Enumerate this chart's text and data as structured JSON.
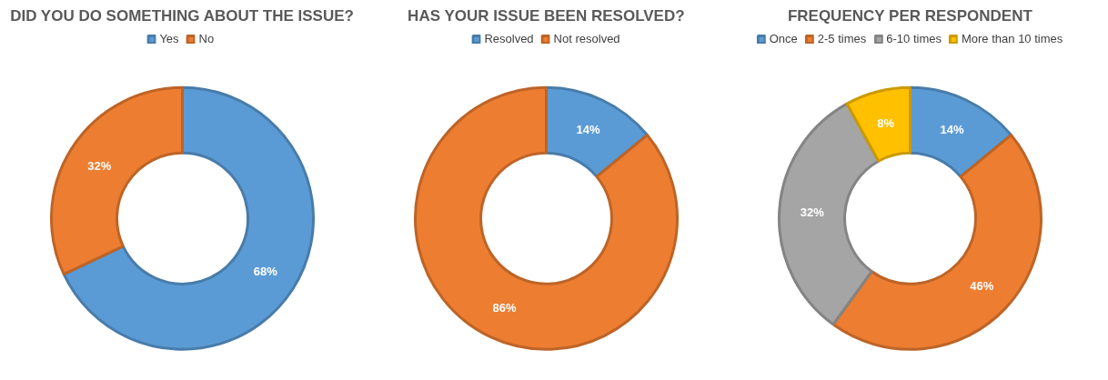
{
  "chart_data": [
    {
      "type": "donut",
      "title": "DID YOU DO SOMETHING ABOUT THE ISSUE?",
      "categories": [
        "Yes",
        "No"
      ],
      "values": [
        68,
        32
      ],
      "colors": [
        "#5b9bd5",
        "#ed7d31"
      ],
      "value_labels": [
        "68%",
        "32%"
      ],
      "legend": "top"
    },
    {
      "type": "donut",
      "title": "HAS YOUR ISSUE BEEN RESOLVED?",
      "categories": [
        "Resolved",
        "Not resolved"
      ],
      "values": [
        14,
        86
      ],
      "colors": [
        "#5b9bd5",
        "#ed7d31"
      ],
      "value_labels": [
        "14%",
        "86%"
      ],
      "legend": "top"
    },
    {
      "type": "donut",
      "title": "FREQUENCY PER RESPONDENT",
      "categories": [
        "Once",
        "2-5 times",
        "6-10 times",
        "More than 10 times"
      ],
      "values": [
        14,
        46,
        32,
        8
      ],
      "colors": [
        "#5b9bd5",
        "#ed7d31",
        "#a5a5a5",
        "#ffc000"
      ],
      "value_labels": [
        "14%",
        "46%",
        "32%",
        "8%"
      ],
      "legend": "top"
    }
  ]
}
